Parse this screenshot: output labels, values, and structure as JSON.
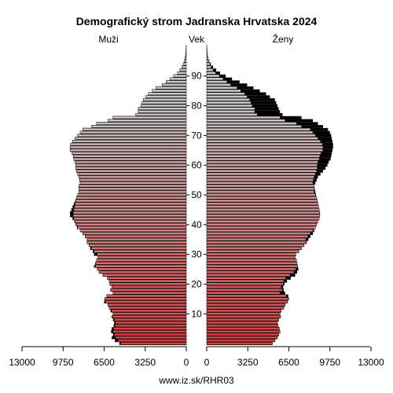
{
  "chart_data": {
    "type": "bar",
    "subtype": "population-pyramid",
    "title": "Demografický strom Jadranska Hrvatska 2024",
    "left_label": "Muži",
    "center_label": "Vek",
    "right_label": "Ženy",
    "footer": "www.iz.sk/RHR03",
    "xlim": [
      0,
      13000
    ],
    "x_ticks": [
      13000,
      9750,
      6500,
      3250,
      0
    ],
    "x_tick_labels": [
      "13000",
      "9750",
      "6500",
      "3250",
      "0"
    ],
    "y_ticks": [
      10,
      20,
      30,
      40,
      50,
      60,
      70,
      80,
      90
    ],
    "ages": [
      0,
      1,
      2,
      3,
      4,
      5,
      6,
      7,
      8,
      9,
      10,
      11,
      12,
      13,
      14,
      15,
      16,
      17,
      18,
      19,
      20,
      21,
      22,
      23,
      24,
      25,
      26,
      27,
      28,
      29,
      30,
      31,
      32,
      33,
      34,
      35,
      36,
      37,
      38,
      39,
      40,
      41,
      42,
      43,
      44,
      45,
      46,
      47,
      48,
      49,
      50,
      51,
      52,
      53,
      54,
      55,
      56,
      57,
      58,
      59,
      60,
      61,
      62,
      63,
      64,
      65,
      66,
      67,
      68,
      69,
      70,
      71,
      72,
      73,
      74,
      75,
      76,
      77,
      78,
      79,
      80,
      81,
      82,
      83,
      84,
      85,
      86,
      87,
      88,
      89,
      90,
      91,
      92,
      93,
      94,
      95,
      96,
      97,
      98,
      99,
      100
    ],
    "series": [
      {
        "name": "Muži",
        "color": "#d24040",
        "values": [
          5300,
          5650,
          5900,
          5800,
          5950,
          5900,
          5750,
          5700,
          5800,
          5900,
          5800,
          6000,
          6100,
          6200,
          6500,
          6450,
          6300,
          5800,
          6000,
          5900,
          6050,
          6100,
          6250,
          6600,
          6900,
          7050,
          7300,
          7200,
          7100,
          7000,
          7300,
          7400,
          7600,
          7700,
          7850,
          7850,
          8000,
          8200,
          8400,
          8650,
          8750,
          8850,
          9000,
          9200,
          9200,
          9100,
          9000,
          8900,
          8800,
          8700,
          8600,
          8500,
          8500,
          8500,
          8400,
          8450,
          8500,
          8600,
          8700,
          8750,
          8750,
          8800,
          8900,
          8950,
          9050,
          9200,
          9200,
          9150,
          9000,
          8800,
          8600,
          8400,
          8200,
          7500,
          7100,
          6200,
          5800,
          4000,
          3800,
          3800,
          3600,
          3500,
          3400,
          3200,
          3000,
          2700,
          2400,
          1900,
          1600,
          1300,
          1000,
          700,
          500,
          350,
          250,
          160,
          100,
          60,
          35,
          20,
          10
        ]
      },
      {
        "name": "Ženy",
        "color": "#d24040",
        "values": [
          5200,
          5400,
          5600,
          5700,
          5800,
          5750,
          5650,
          5600,
          5700,
          5850,
          5800,
          5900,
          6100,
          6200,
          6400,
          6500,
          6450,
          6200,
          6100,
          6050,
          6150,
          6350,
          6650,
          7000,
          7150,
          7250,
          7200,
          7150,
          7100,
          7000,
          7050,
          7300,
          7500,
          7700,
          7900,
          8050,
          8200,
          8400,
          8500,
          8600,
          8700,
          8800,
          8900,
          8950,
          8950,
          8900,
          8850,
          8800,
          8750,
          8700,
          8650,
          8600,
          8550,
          8500,
          8600,
          8700,
          8800,
          9000,
          9200,
          9400,
          9550,
          9650,
          9800,
          9850,
          9900,
          9950,
          10000,
          10000,
          9950,
          9900,
          9850,
          9750,
          9600,
          9200,
          8800,
          8400,
          7500,
          6000,
          5800,
          5700,
          5600,
          5500,
          5400,
          5000,
          4700,
          4200,
          3700,
          3200,
          2600,
          2000,
          1500,
          1050,
          750,
          500,
          320,
          200,
          120,
          70,
          40,
          20,
          10
        ]
      }
    ]
  }
}
